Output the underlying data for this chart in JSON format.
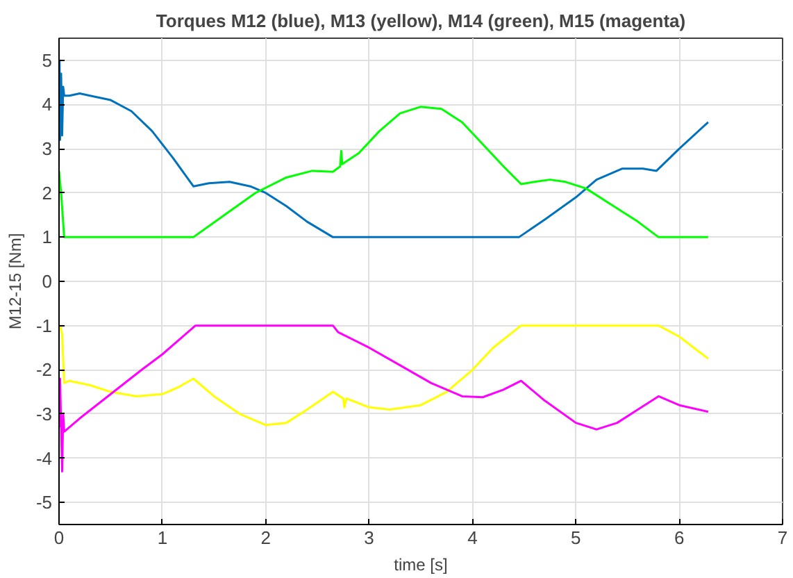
{
  "chart_data": {
    "type": "line",
    "title": "Torques M12 (blue), M13 (yellow), M14 (green), M15 (magenta)",
    "xlabel": "time [s]",
    "ylabel": "M12-15 [Nm]",
    "xlim": [
      0,
      7
    ],
    "ylim": [
      -5.5,
      5.5
    ],
    "xticks": [
      0,
      1,
      2,
      3,
      4,
      5,
      6,
      7
    ],
    "yticks": [
      -5,
      -4,
      -3,
      -2,
      -1,
      0,
      1,
      2,
      3,
      4,
      5
    ],
    "grid": true,
    "line_style": "solid",
    "series": [
      {
        "color": "#0072bd",
        "x": [
          0,
          0.005,
          0.01,
          0.02,
          0.03,
          0.04,
          0.05,
          0.1,
          0.2,
          0.3,
          0.5,
          0.7,
          0.9,
          1.1,
          1.3,
          1.45,
          1.65,
          1.85,
          2.0,
          2.2,
          2.4,
          2.65,
          3.0,
          4.0,
          4.45,
          4.7,
          5.0,
          5.2,
          5.45,
          5.65,
          5.78,
          6.0,
          6.28
        ],
        "values": [
          4.2,
          5.0,
          3.2,
          4.7,
          3.3,
          4.4,
          4.2,
          4.2,
          4.25,
          4.2,
          4.1,
          3.85,
          3.4,
          2.8,
          2.15,
          2.22,
          2.25,
          2.15,
          2.0,
          1.7,
          1.35,
          1.0,
          1.0,
          1.0,
          1.0,
          1.4,
          1.9,
          2.3,
          2.55,
          2.55,
          2.5,
          3.0,
          3.6
        ]
      },
      {
        "color": "#ffff00",
        "x": [
          0.01,
          0.03,
          0.05,
          0.1,
          0.3,
          0.5,
          0.75,
          1.0,
          1.15,
          1.3,
          1.5,
          1.75,
          2.0,
          2.2,
          2.4,
          2.65,
          2.75,
          2.76,
          2.78,
          3.0,
          3.2,
          3.5,
          3.75,
          4.0,
          4.2,
          4.47,
          5.8,
          6.0,
          6.28
        ],
        "values": [
          -1.0,
          -1.2,
          -2.3,
          -2.25,
          -2.35,
          -2.5,
          -2.6,
          -2.55,
          -2.4,
          -2.2,
          -2.6,
          -3.0,
          -3.25,
          -3.2,
          -2.9,
          -2.5,
          -2.65,
          -2.85,
          -2.65,
          -2.85,
          -2.9,
          -2.8,
          -2.5,
          -2.0,
          -1.5,
          -1.0,
          -1.0,
          -1.25,
          -1.75
        ]
      },
      {
        "color": "#00ff00",
        "x": [
          0,
          0.02,
          0.05,
          1.3,
          1.6,
          1.9,
          2.2,
          2.45,
          2.65,
          2.72,
          2.73,
          2.74,
          2.9,
          3.1,
          3.3,
          3.5,
          3.7,
          3.9,
          4.1,
          4.3,
          4.47,
          4.6,
          4.75,
          4.9,
          5.1,
          5.3,
          5.6,
          5.8,
          6.28
        ],
        "values": [
          2.5,
          2.0,
          1.0,
          1.0,
          1.5,
          2.0,
          2.35,
          2.5,
          2.48,
          2.6,
          2.95,
          2.65,
          2.9,
          3.4,
          3.8,
          3.95,
          3.9,
          3.6,
          3.1,
          2.6,
          2.2,
          2.25,
          2.3,
          2.25,
          2.1,
          1.8,
          1.35,
          1.0,
          1.0
        ]
      },
      {
        "color": "#ff00ff",
        "x": [
          0,
          0.01,
          0.02,
          0.03,
          0.04,
          0.05,
          0.2,
          0.5,
          0.8,
          1.0,
          1.32,
          2.65,
          2.7,
          3.0,
          3.3,
          3.6,
          3.9,
          4.1,
          4.3,
          4.47,
          4.7,
          5.0,
          5.2,
          5.4,
          5.6,
          5.8,
          6.0,
          6.28
        ],
        "values": [
          -3.3,
          -2.2,
          -3.3,
          -4.3,
          -3.0,
          -3.4,
          -3.1,
          -2.55,
          -2.0,
          -1.65,
          -1.0,
          -1.0,
          -1.15,
          -1.5,
          -1.9,
          -2.3,
          -2.6,
          -2.62,
          -2.45,
          -2.25,
          -2.7,
          -3.2,
          -3.35,
          -3.2,
          -2.9,
          -2.6,
          -2.8,
          -2.95
        ]
      }
    ]
  }
}
